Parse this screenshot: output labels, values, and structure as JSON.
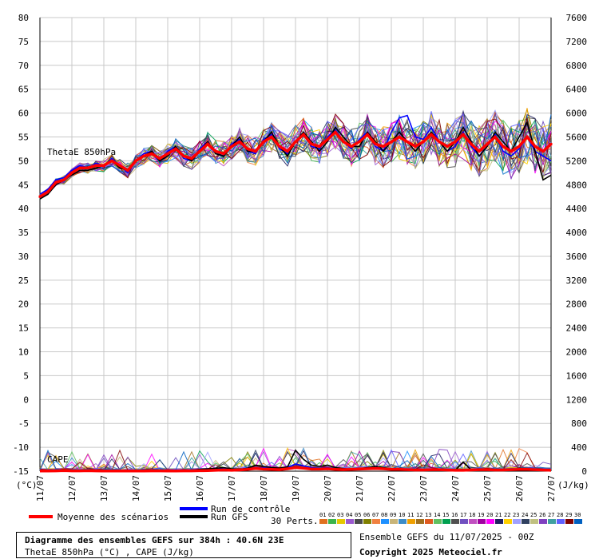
{
  "chart_data": {
    "type": "line",
    "title": "Diagramme des ensembles GEFS sur 384h : 40.6N 23E",
    "subtitle": "ThetaE 850hPa (°C) , CAPE (J/kg)",
    "run_info": "Ensemble GEFS du 11/07/2025 - 00Z",
    "copyright": "Copyright 2025 Meteociel.fr",
    "left_axis_unit": "(°C)",
    "right_axis_unit": "(J/kg)",
    "left_ticks": [
      "80",
      "75",
      "70",
      "65",
      "60",
      "55",
      "50",
      "45",
      "40",
      "35",
      "30",
      "25",
      "20",
      "15",
      "10",
      "5",
      "0",
      "-5",
      "-10",
      "-15"
    ],
    "right_ticks": [
      "7600",
      "7200",
      "6800",
      "6400",
      "6000",
      "5600",
      "5200",
      "4800",
      "4400",
      "4000",
      "3600",
      "3200",
      "2800",
      "2400",
      "2000",
      "1600",
      "1200",
      "800",
      "400",
      "0"
    ],
    "ylim_left": [
      -15,
      80
    ],
    "ylim_right": [
      0,
      7600
    ],
    "x_ticks": [
      "11/07",
      "12/07",
      "13/07",
      "14/07",
      "15/07",
      "16/07",
      "17/07",
      "18/07",
      "19/07",
      "20/07",
      "21/07",
      "22/07",
      "23/07",
      "24/07",
      "25/07",
      "26/07",
      "27/07"
    ],
    "x_step_hours": 6,
    "n_steps": 65,
    "theta_label": "ThetaE 850hPa",
    "cape_label": "CAPE",
    "legend": {
      "mean": "Moyenne des scénarios",
      "control": "Run de contrôle",
      "gfs": "Run GFS",
      "perts": "30 Perts."
    },
    "colors": {
      "mean": "#ff0000",
      "control": "#0000ff",
      "gfs": "#000000",
      "perts": [
        "#e07020",
        "#3cb44b",
        "#e6c800",
        "#9b59d0",
        "#4a4a4a",
        "#808000",
        "#f08040",
        "#1e90ff",
        "#c8b478",
        "#3c8cc8",
        "#f0a000",
        "#a07020",
        "#e05a20",
        "#60c060",
        "#00a050",
        "#505050",
        "#7050c0",
        "#c050c0",
        "#a000a0",
        "#ff00ff",
        "#202060",
        "#ffd000",
        "#a0a0ff",
        "#304060",
        "#c0c080",
        "#8040c0",
        "#40a0a0",
        "#6060ff",
        "#800000",
        "#0060c0"
      ]
    },
    "series": {
      "mean": [
        42.5,
        43.5,
        45.5,
        46,
        47.5,
        48.5,
        48.5,
        49,
        49,
        50,
        49,
        48,
        50,
        51,
        51.5,
        50.5,
        51.5,
        52.5,
        51,
        50.5,
        52,
        53.5,
        52,
        51.5,
        53,
        54,
        52.5,
        52,
        54,
        55,
        53,
        52,
        54,
        55.5,
        53.5,
        53,
        54.5,
        56,
        54,
        53,
        54,
        55.5,
        53.5,
        53,
        54,
        55,
        54,
        53,
        54,
        55.5,
        54,
        53,
        54,
        55.5,
        53.5,
        52,
        53.5,
        55,
        53,
        52,
        53,
        55,
        53,
        52,
        53.5
      ],
      "control": [
        43,
        44,
        46,
        46.5,
        48,
        49,
        48.5,
        49.5,
        49,
        50.5,
        49,
        47.5,
        50,
        51.5,
        52,
        50,
        52,
        53,
        50.5,
        50,
        52.5,
        54,
        51.5,
        51,
        53.5,
        54.5,
        52,
        51.5,
        54.5,
        55.5,
        52.5,
        51.5,
        54,
        56,
        53,
        52.5,
        55,
        56.5,
        54,
        52.5,
        54.5,
        56,
        53,
        52,
        56,
        59,
        59.5,
        55,
        54.5,
        57,
        54,
        52,
        53,
        56,
        53,
        51,
        53,
        55.5,
        52,
        51,
        52.5,
        55,
        52,
        51,
        50
      ],
      "gfs": [
        42,
        43,
        45,
        46,
        47,
        48,
        48,
        48.5,
        49,
        50,
        48.5,
        48,
        50,
        51,
        52,
        50,
        51,
        53,
        51,
        50,
        52,
        54,
        51.5,
        51,
        53,
        55,
        52,
        52,
        54,
        56,
        53,
        51,
        54,
        56,
        54,
        52,
        54,
        57,
        55,
        53,
        53,
        56,
        54,
        52,
        54,
        56,
        54,
        52,
        54,
        56,
        54,
        52,
        54,
        57,
        54,
        51,
        53,
        56,
        54,
        52,
        55,
        58,
        52,
        46,
        47
      ],
      "cape_mean": [
        3,
        3,
        5,
        10,
        5,
        5,
        8,
        5,
        3,
        3,
        3,
        3,
        3,
        3,
        5,
        5,
        3,
        3,
        5,
        5,
        8,
        10,
        15,
        20,
        15,
        20,
        30,
        45,
        35,
        30,
        25,
        40,
        60,
        50,
        35,
        35,
        40,
        30,
        25,
        30,
        35,
        40,
        45,
        40,
        30,
        30,
        25,
        20,
        20,
        25,
        25,
        20,
        15,
        15,
        20,
        25,
        25,
        20,
        20,
        25,
        30,
        30,
        25,
        20,
        15
      ],
      "cape_control": [
        2,
        2,
        3,
        5,
        5,
        8,
        15,
        10,
        5,
        5,
        3,
        3,
        3,
        3,
        3,
        5,
        5,
        5,
        10,
        15,
        20,
        25,
        30,
        40,
        30,
        30,
        40,
        50,
        60,
        45,
        40,
        60,
        120,
        90,
        60,
        50,
        60,
        40,
        30,
        30,
        40,
        50,
        60,
        50,
        40,
        35,
        30,
        25,
        25,
        30,
        30,
        25,
        20,
        20,
        25,
        30,
        30,
        25,
        25,
        30,
        40,
        40,
        30,
        25,
        20
      ],
      "cape_gfs": [
        2,
        2,
        3,
        15,
        10,
        5,
        20,
        10,
        5,
        5,
        3,
        3,
        3,
        3,
        3,
        5,
        5,
        5,
        10,
        20,
        30,
        40,
        50,
        60,
        40,
        30,
        50,
        100,
        80,
        60,
        50,
        70,
        350,
        200,
        100,
        80,
        100,
        60,
        40,
        30,
        40,
        60,
        80,
        60,
        40,
        30,
        25,
        20,
        20,
        25,
        25,
        20,
        15,
        150,
        20,
        25,
        25,
        20,
        20,
        25,
        30,
        30,
        25,
        20,
        15
      ]
    }
  }
}
